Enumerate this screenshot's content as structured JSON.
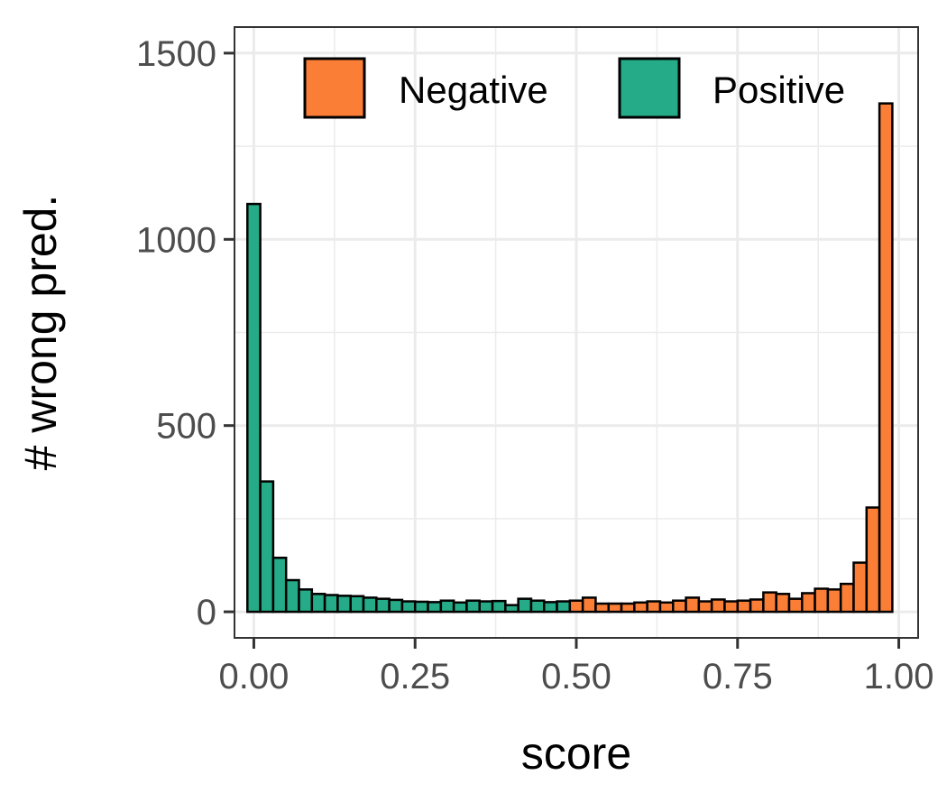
{
  "chart_data": {
    "type": "bar",
    "xlabel": "score",
    "ylabel": "# wrong pred.",
    "xlim": [
      -0.03,
      1.03
    ],
    "ylim": [
      -70,
      1570
    ],
    "x_ticks": [
      {
        "value": 0,
        "label": "0.00"
      },
      {
        "value": 0.25,
        "label": "0.25"
      },
      {
        "value": 0.5,
        "label": "0.50"
      },
      {
        "value": 0.75,
        "label": "0.75"
      },
      {
        "value": 1,
        "label": "1.00"
      }
    ],
    "y_ticks": [
      {
        "value": 0,
        "label": "0"
      },
      {
        "value": 500,
        "label": "500"
      },
      {
        "value": 1000,
        "label": "1000"
      },
      {
        "value": 1500,
        "label": "1500"
      }
    ],
    "grid": true,
    "legend_position": "top-right",
    "bin_width": 0.02,
    "series": [
      {
        "name": "Positive",
        "color": "#25AB87",
        "x": [
          0.0,
          0.02,
          0.04,
          0.06,
          0.08,
          0.1,
          0.12,
          0.14,
          0.16,
          0.18,
          0.2,
          0.22,
          0.24,
          0.26,
          0.28,
          0.3,
          0.32,
          0.34,
          0.36,
          0.38,
          0.4,
          0.42,
          0.44,
          0.46,
          0.48
        ],
        "values": [
          1095,
          350,
          145,
          85,
          60,
          48,
          45,
          43,
          42,
          38,
          35,
          32,
          28,
          27,
          26,
          30,
          25,
          30,
          28,
          29,
          18,
          35,
          30,
          26,
          28
        ]
      },
      {
        "name": "Negative",
        "color": "#FB7E37",
        "x": [
          0.5,
          0.52,
          0.54,
          0.56,
          0.58,
          0.6,
          0.62,
          0.64,
          0.66,
          0.68,
          0.7,
          0.72,
          0.74,
          0.76,
          0.78,
          0.8,
          0.82,
          0.84,
          0.86,
          0.88,
          0.9,
          0.92,
          0.94,
          0.96,
          0.98,
          1.0
        ],
        "values": [
          30,
          38,
          22,
          22,
          22,
          25,
          28,
          25,
          30,
          38,
          28,
          33,
          28,
          30,
          33,
          52,
          48,
          35,
          50,
          62,
          60,
          75,
          132,
          280,
          1365,
          0
        ]
      }
    ],
    "legend": [
      {
        "label": "Negative",
        "color": "#FB7E37"
      },
      {
        "label": "Positive",
        "color": "#25AB87"
      }
    ]
  }
}
